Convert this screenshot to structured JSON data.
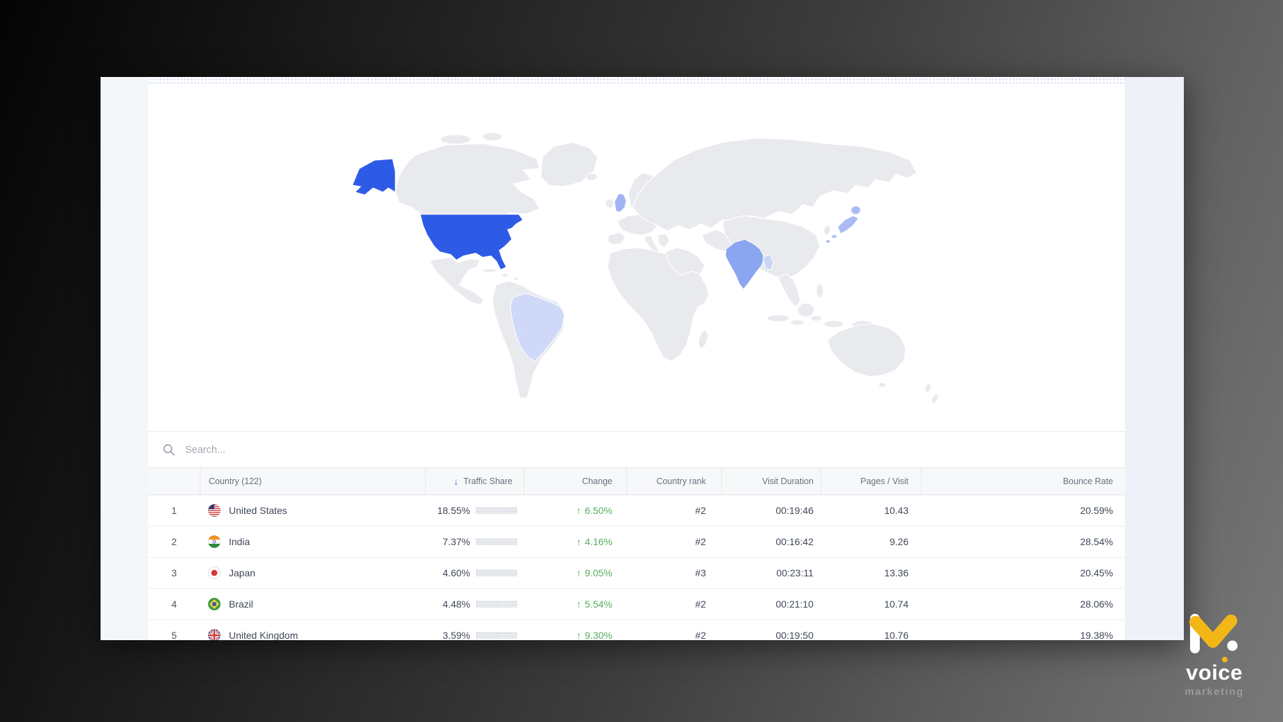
{
  "search": {
    "placeholder": "Search..."
  },
  "table": {
    "columns": {
      "country": "Country (122)",
      "traffic_share": "Traffic Share",
      "change": "Change",
      "country_rank": "Country rank",
      "visit_duration": "Visit Duration",
      "pages_visit": "Pages / Visit",
      "bounce_rate": "Bounce Rate"
    },
    "sort": {
      "column": "traffic_share",
      "direction": "down",
      "icon": "arrow-down-icon"
    },
    "rows": [
      {
        "rank": "1",
        "flag": "us",
        "country": "United States",
        "traffic_share": "18.55%",
        "bar_pct": 22,
        "change": "6.50%",
        "change_dir": "up",
        "country_rank": "#2",
        "visit_duration": "00:19:46",
        "pages_visit": "10.43",
        "bounce_rate": "20.59%"
      },
      {
        "rank": "2",
        "flag": "in",
        "country": "India",
        "traffic_share": "7.37%",
        "bar_pct": 9,
        "change": "4.16%",
        "change_dir": "up",
        "country_rank": "#2",
        "visit_duration": "00:16:42",
        "pages_visit": "9.26",
        "bounce_rate": "28.54%"
      },
      {
        "rank": "3",
        "flag": "jp",
        "country": "Japan",
        "traffic_share": "4.60%",
        "bar_pct": 6,
        "change": "9.05%",
        "change_dir": "up",
        "country_rank": "#3",
        "visit_duration": "00:23:11",
        "pages_visit": "13.36",
        "bounce_rate": "20.45%"
      },
      {
        "rank": "4",
        "flag": "br",
        "country": "Brazil",
        "traffic_share": "4.48%",
        "bar_pct": 6,
        "change": "5.54%",
        "change_dir": "up",
        "country_rank": "#2",
        "visit_duration": "00:21:10",
        "pages_visit": "10.74",
        "bounce_rate": "28.06%"
      },
      {
        "rank": "5",
        "flag": "gb",
        "country": "United Kingdom",
        "traffic_share": "3.59%",
        "bar_pct": 5,
        "change": "9.30%",
        "change_dir": "up",
        "country_rank": "#2",
        "visit_duration": "00:19:50",
        "pages_visit": "10.76",
        "bounce_rate": "19.38%"
      }
    ]
  },
  "map": {
    "land_color": "#e9eaee",
    "highlighted": [
      {
        "name": "United States",
        "color": "#2e5be6"
      },
      {
        "name": "India",
        "color": "#8ba6f0"
      },
      {
        "name": "Japan",
        "color": "#a9bcf4"
      },
      {
        "name": "Brazil",
        "color": "#c0cdf6"
      },
      {
        "name": "United Kingdom",
        "color": "#9fb3f2"
      }
    ]
  },
  "logo": {
    "title": "voice",
    "subtitle": "marketing",
    "accent_color": "#f2b717"
  },
  "glyphs": {
    "sort_down": "↓",
    "change_up": "↑"
  }
}
